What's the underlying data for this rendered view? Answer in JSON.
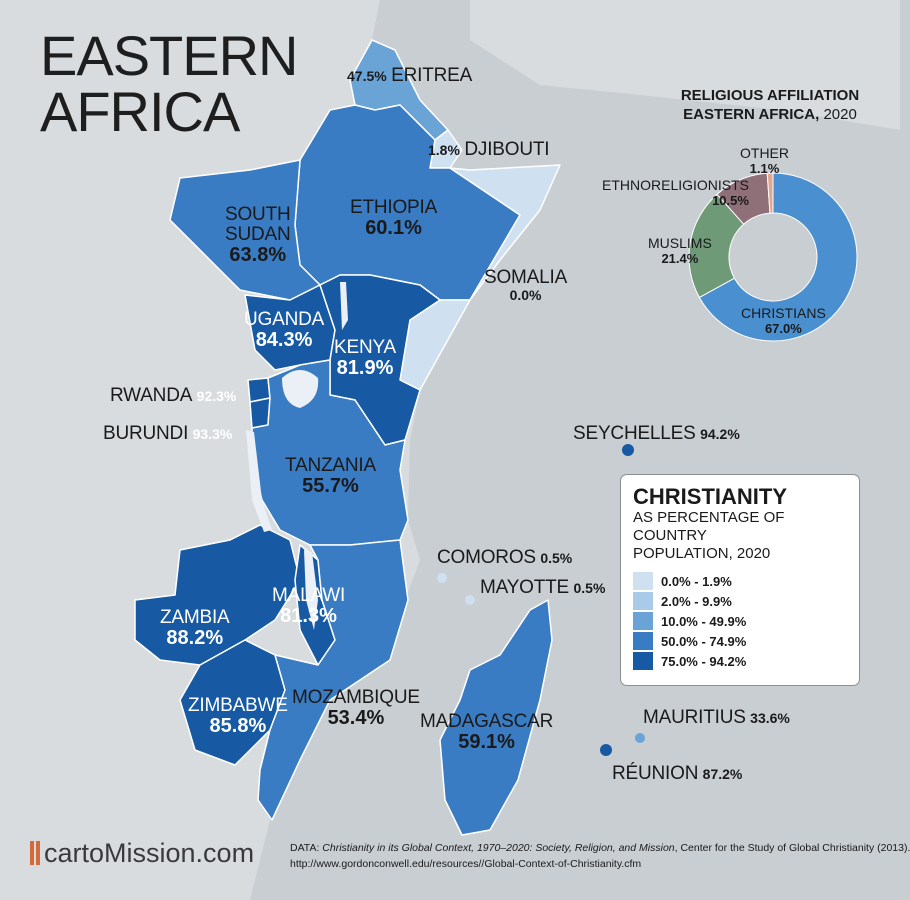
{
  "title": [
    "EASTERN",
    "AFRICA"
  ],
  "countries": [
    {
      "id": "eritrea",
      "name": "ERITREA",
      "value": "47.5%"
    },
    {
      "id": "djibouti",
      "name": "DJIBOUTI",
      "value": "1.8%"
    },
    {
      "id": "ethiopia",
      "name": "ETHIOPIA",
      "value": "60.1%"
    },
    {
      "id": "south-sudan",
      "name": "SOUTH SUDAN",
      "name_lines": [
        "SOUTH",
        "SUDAN"
      ],
      "value": "63.8%"
    },
    {
      "id": "somalia",
      "name": "SOMALIA",
      "value": "0.0%"
    },
    {
      "id": "uganda",
      "name": "UGANDA",
      "value": "84.3%"
    },
    {
      "id": "kenya",
      "name": "KENYA",
      "value": "81.9%"
    },
    {
      "id": "rwanda",
      "name": "RWANDA",
      "value": "92.3%"
    },
    {
      "id": "burundi",
      "name": "BURUNDI",
      "value": "93.3%"
    },
    {
      "id": "tanzania",
      "name": "TANZANIA",
      "value": "55.7%"
    },
    {
      "id": "seychelles",
      "name": "SEYCHELLES",
      "value": "94.2%"
    },
    {
      "id": "comoros",
      "name": "COMOROS",
      "value": "0.5%"
    },
    {
      "id": "mayotte",
      "name": "MAYOTTE",
      "value": "0.5%"
    },
    {
      "id": "malawi",
      "name": "MALAWI",
      "value": "81.3%"
    },
    {
      "id": "zambia",
      "name": "ZAMBIA",
      "value": "88.2%"
    },
    {
      "id": "zimbabwe",
      "name": "ZIMBABWE",
      "value": "85.8%"
    },
    {
      "id": "mozambique",
      "name": "MOZAMBIQUE",
      "value": "53.4%"
    },
    {
      "id": "madagascar",
      "name": "MADAGASCAR",
      "value": "59.1%"
    },
    {
      "id": "mauritius",
      "name": "MAURITIUS",
      "value": "33.6%"
    },
    {
      "id": "reunion",
      "name": "RÉUNION",
      "value": "87.2%"
    }
  ],
  "donut": {
    "title_lines": [
      "RELIGIOUS AFFILIATION",
      "EASTERN AFRICA,"
    ],
    "year": "2020",
    "segments": [
      {
        "name": "CHRISTIANS",
        "value": 67.0,
        "label": "67.0%",
        "color": "#4a8fcf"
      },
      {
        "name": "MUSLIMS",
        "value": 21.4,
        "label": "21.4%",
        "color": "#6e9a78"
      },
      {
        "name": "ETHNORELIGIONISTS",
        "value": 10.5,
        "label": "10.5%",
        "color": "#8f6f78"
      },
      {
        "name": "OTHER",
        "value": 1.1,
        "label": "1.1%",
        "color": "#e0a890"
      }
    ]
  },
  "legend": {
    "title": "CHRISTIANITY",
    "subtitle_lines": [
      "AS PERCENTAGE OF COUNTRY",
      "POPULATION, 2020"
    ],
    "items": [
      {
        "label": "0.0% - 1.9%",
        "color": "#cfe0f1"
      },
      {
        "label": "2.0% - 9.9%",
        "color": "#a9cbe9"
      },
      {
        "label": "10.0% - 49.9%",
        "color": "#6aa4d7"
      },
      {
        "label": "50.0% - 74.9%",
        "color": "#3a7cc4"
      },
      {
        "label": "75.0% - 94.2%",
        "color": "#175aa3"
      }
    ]
  },
  "source": {
    "prefix": "DATA:",
    "work": "Christianity in its Global Context, 1970–2020: Society, Religion, and Mission",
    "org": ", Center for the Study of Global Christianity (2013).",
    "url": "http://www.gordonconwell.edu/resources//Global-Context-of-Christianity.cfm"
  },
  "logo": {
    "part1": "carto",
    "part2": "Mission.com"
  },
  "colors": {
    "land": "#d8dcdf",
    "sea": "#c9ced3",
    "border": "#ffffff",
    "water": "#eaf0f5"
  },
  "icons": {
    "logo_mark": "cartomission-logo-icon"
  }
}
